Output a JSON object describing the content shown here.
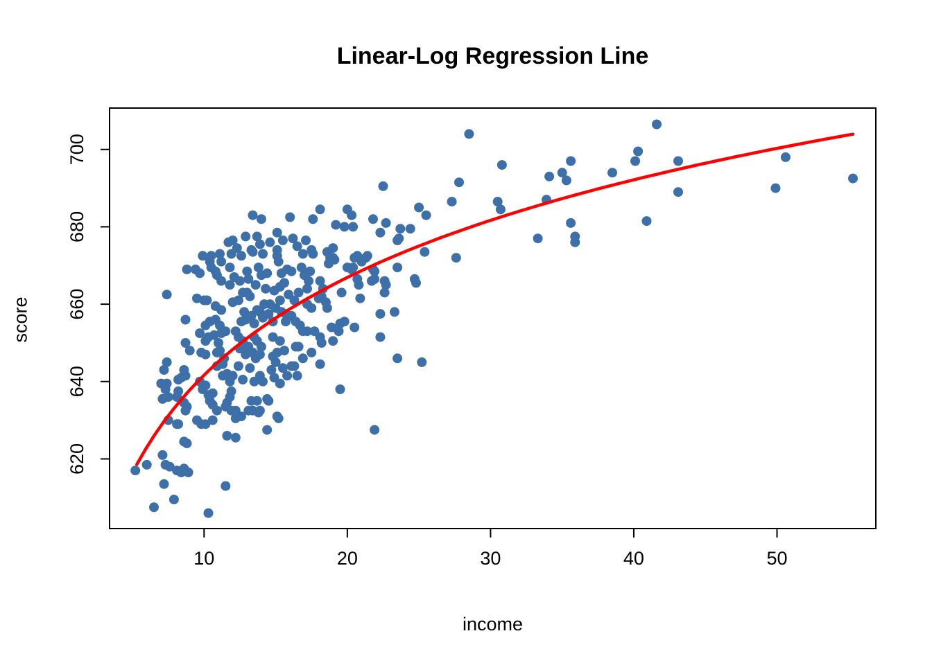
{
  "chart_data": {
    "type": "scatter",
    "title": "Linear-Log Regression Line",
    "xlabel": "income",
    "ylabel": "score",
    "x_ticks": [
      10,
      20,
      30,
      40,
      50
    ],
    "y_ticks": [
      620,
      640,
      660,
      680,
      700
    ],
    "xlim": [
      3.4,
      56.9
    ],
    "ylim": [
      602,
      710.7
    ],
    "grid": false,
    "legend": "none",
    "point_color": "#3D6FA8",
    "line_color": "#FF0000",
    "axis_color": "#000000",
    "regression_line": {
      "model": "score = 557.8 + 36.42 * ln(income)",
      "intercept": 557.8,
      "slope_log": 36.42,
      "x_start": 5.3,
      "x_end": 55.3
    },
    "points": [
      [
        28.5,
        704
      ],
      [
        30.8,
        696
      ],
      [
        30.5,
        686.5
      ],
      [
        30.7,
        684.5
      ],
      [
        33.9,
        687
      ],
      [
        34.1,
        693
      ],
      [
        35.0,
        694
      ],
      [
        35.3,
        692
      ],
      [
        35.6,
        697
      ],
      [
        38.5,
        694
      ],
      [
        40.3,
        699.5
      ],
      [
        40.1,
        697
      ],
      [
        41.6,
        706.5
      ],
      [
        43.1,
        697
      ],
      [
        43.1,
        689
      ],
      [
        35.6,
        681
      ],
      [
        33.3,
        677
      ],
      [
        35.9,
        677.5
      ],
      [
        35.9,
        676
      ],
      [
        40.9,
        681.5
      ],
      [
        50.6,
        698
      ],
      [
        49.9,
        690
      ],
      [
        55.3,
        692.5
      ],
      [
        22.5,
        690.5
      ],
      [
        27.8,
        691.5
      ],
      [
        27.3,
        686.5
      ],
      [
        25.0,
        685
      ],
      [
        25.5,
        683
      ],
      [
        20.0,
        684.5
      ],
      [
        20.3,
        683
      ],
      [
        19.2,
        680.5
      ],
      [
        19.8,
        680
      ],
      [
        20.4,
        680
      ],
      [
        21.8,
        682
      ],
      [
        22.7,
        681
      ],
      [
        22.3,
        678.5
      ],
      [
        23.7,
        679.5
      ],
      [
        23.6,
        677
      ],
      [
        23.5,
        676.5
      ],
      [
        24.4,
        679.5
      ],
      [
        25.4,
        673.5
      ],
      [
        27.6,
        672
      ],
      [
        19.0,
        674.5
      ],
      [
        19.0,
        672
      ],
      [
        19.1,
        671.5
      ],
      [
        20.5,
        672
      ],
      [
        20.7,
        672.5
      ],
      [
        21.3,
        672
      ],
      [
        21.4,
        672.5
      ],
      [
        21.0,
        671
      ],
      [
        20.0,
        669.5
      ],
      [
        20.4,
        669.5
      ],
      [
        20.3,
        669
      ],
      [
        21.8,
        669
      ],
      [
        21.9,
        668.5
      ],
      [
        23.5,
        669.5
      ],
      [
        20.7,
        666.5
      ],
      [
        20.8,
        665
      ],
      [
        21.7,
        666
      ],
      [
        21.9,
        666.5
      ],
      [
        22.6,
        666
      ],
      [
        22.7,
        665
      ],
      [
        24.7,
        666.5
      ],
      [
        24.8,
        665.5
      ],
      [
        19.6,
        663
      ],
      [
        20.9,
        661.5
      ],
      [
        22.6,
        663
      ],
      [
        22.3,
        657.5
      ],
      [
        23.3,
        658
      ],
      [
        19.4,
        653
      ],
      [
        20.5,
        654
      ],
      [
        22.3,
        651.5
      ],
      [
        23.5,
        646
      ],
      [
        25.2,
        645
      ],
      [
        19.5,
        638
      ],
      [
        21.9,
        627.5
      ],
      [
        11.7,
        676
      ],
      [
        9.9,
        672.5
      ],
      [
        10.5,
        672.5
      ],
      [
        11.1,
        673
      ],
      [
        11.2,
        671
      ],
      [
        8.8,
        669
      ],
      [
        9.4,
        669
      ],
      [
        9.7,
        668
      ],
      [
        10.4,
        671
      ],
      [
        10.5,
        669.5
      ],
      [
        10.8,
        668.5
      ],
      [
        10.9,
        667.5
      ],
      [
        11.2,
        666
      ],
      [
        7.4,
        662.5
      ],
      [
        9.5,
        661.5
      ],
      [
        10.0,
        661
      ],
      [
        10.2,
        661
      ],
      [
        10.8,
        659.5
      ],
      [
        11.2,
        658.5
      ],
      [
        8.7,
        656
      ],
      [
        10.1,
        654.5
      ],
      [
        10.4,
        655.5
      ],
      [
        10.8,
        656
      ],
      [
        11.1,
        654.5
      ],
      [
        11.5,
        653
      ],
      [
        11.2,
        652.5
      ],
      [
        9.7,
        652.5
      ],
      [
        10.1,
        650.5
      ],
      [
        10.3,
        651.5
      ],
      [
        8.7,
        650
      ],
      [
        9.0,
        648
      ],
      [
        9.8,
        647.5
      ],
      [
        10.1,
        647
      ],
      [
        10.9,
        647.5
      ],
      [
        11.1,
        648
      ],
      [
        7.4,
        645
      ],
      [
        13.4,
        683
      ],
      [
        14.0,
        682
      ],
      [
        16.0,
        682.5
      ],
      [
        17.6,
        682
      ],
      [
        18.1,
        684.5
      ],
      [
        12.9,
        677.5
      ],
      [
        13.7,
        677.5
      ],
      [
        12.0,
        676.5
      ],
      [
        15.1,
        678.5
      ],
      [
        16.2,
        677
      ],
      [
        12.6,
        672.5
      ],
      [
        13.3,
        674
      ],
      [
        13.4,
        673.5
      ],
      [
        14.1,
        673
      ],
      [
        15.1,
        674
      ],
      [
        15.1,
        672.5
      ],
      [
        15.2,
        671
      ],
      [
        16.9,
        673
      ],
      [
        17.5,
        674
      ],
      [
        17.6,
        673
      ],
      [
        18.6,
        673.5
      ],
      [
        18.8,
        672
      ],
      [
        18.7,
        670.5
      ],
      [
        11.8,
        669.5
      ],
      [
        11.8,
        665
      ],
      [
        14.0,
        667.5
      ],
      [
        15.4,
        668
      ],
      [
        15.6,
        665.5
      ],
      [
        15.3,
        664.5
      ],
      [
        17.0,
        667.5
      ],
      [
        17.3,
        666
      ],
      [
        17.2,
        664
      ],
      [
        18.1,
        666
      ],
      [
        18.3,
        664
      ],
      [
        18.2,
        662
      ],
      [
        18.0,
        661.5
      ],
      [
        12.7,
        663
      ],
      [
        13.0,
        663
      ],
      [
        13.2,
        662
      ],
      [
        14.2,
        660
      ],
      [
        14.6,
        660
      ],
      [
        12.0,
        660.5
      ],
      [
        12.4,
        661
      ],
      [
        13.7,
        658.5
      ],
      [
        13.9,
        658
      ],
      [
        15.3,
        661
      ],
      [
        15.4,
        658
      ],
      [
        15.7,
        657.5
      ],
      [
        17.2,
        660
      ],
      [
        17.5,
        659
      ],
      [
        18.5,
        660.5
      ],
      [
        18.6,
        659
      ],
      [
        12.6,
        655.5
      ],
      [
        12.9,
        656
      ],
      [
        13.5,
        655
      ],
      [
        14.8,
        655.5
      ],
      [
        15.7,
        655.5
      ],
      [
        16.7,
        654.5
      ],
      [
        16.9,
        653
      ],
      [
        19.8,
        655.5
      ],
      [
        12.2,
        653
      ],
      [
        12.4,
        651.5
      ],
      [
        12.7,
        650.5
      ],
      [
        13.5,
        651.5
      ],
      [
        13.7,
        650.5
      ],
      [
        14.0,
        649
      ],
      [
        14.8,
        651.5
      ],
      [
        15.3,
        650.5
      ],
      [
        17.2,
        653
      ],
      [
        17.7,
        653
      ],
      [
        18.1,
        651.5
      ],
      [
        18.9,
        654
      ],
      [
        19.0,
        650.5
      ],
      [
        19.5,
        655
      ],
      [
        13.4,
        647.5
      ],
      [
        13.6,
        646
      ],
      [
        13.9,
        647
      ],
      [
        14.8,
        646.5
      ],
      [
        15.1,
        647.5
      ],
      [
        15.0,
        645
      ],
      [
        16.4,
        649
      ],
      [
        16.6,
        649
      ],
      [
        18.2,
        650
      ],
      [
        16.1,
        644
      ],
      [
        16.3,
        644
      ],
      [
        12.9,
        647
      ],
      [
        18.1,
        644.5
      ],
      [
        7.2,
        643
      ],
      [
        8.4,
        641
      ],
      [
        8.7,
        641.5
      ],
      [
        8.6,
        643
      ],
      [
        7.0,
        639.5
      ],
      [
        7.4,
        639.5
      ],
      [
        7.3,
        638
      ],
      [
        7.1,
        635.5
      ],
      [
        7.5,
        636
      ],
      [
        8.2,
        640.5
      ],
      [
        8.2,
        637.5
      ],
      [
        8.1,
        636
      ],
      [
        9.7,
        640
      ],
      [
        9.9,
        638
      ],
      [
        10.1,
        639
      ],
      [
        10.3,
        636.5
      ],
      [
        10.6,
        637
      ],
      [
        11.3,
        641.5
      ],
      [
        11.6,
        642
      ],
      [
        8.6,
        634.5
      ],
      [
        8.8,
        633.5
      ],
      [
        8.7,
        632.5
      ],
      [
        10.4,
        635
      ],
      [
        10.6,
        634
      ],
      [
        10.9,
        632.5
      ],
      [
        11.5,
        633.5
      ],
      [
        11.6,
        634.5
      ],
      [
        7.5,
        630
      ],
      [
        8.1,
        629
      ],
      [
        8.2,
        629
      ],
      [
        9.5,
        630
      ],
      [
        9.8,
        629
      ],
      [
        10.1,
        629
      ],
      [
        10.6,
        630
      ],
      [
        8.6,
        624.5
      ],
      [
        8.8,
        624
      ],
      [
        7.1,
        621
      ],
      [
        7.3,
        618.5
      ],
      [
        7.6,
        618
      ],
      [
        6.0,
        618.5
      ],
      [
        5.2,
        617
      ],
      [
        7.2,
        613.5
      ],
      [
        7.9,
        609.5
      ],
      [
        6.5,
        607.5
      ],
      [
        11.5,
        613
      ],
      [
        10.3,
        606
      ],
      [
        8.1,
        617
      ],
      [
        8.4,
        616.5
      ],
      [
        8.6,
        617.5
      ],
      [
        8.9,
        616.5
      ],
      [
        11.6,
        626
      ],
      [
        13.9,
        641.5
      ],
      [
        13.5,
        640
      ],
      [
        14.1,
        640
      ],
      [
        15.8,
        641.5
      ],
      [
        11.8,
        640
      ],
      [
        11.9,
        637.5
      ],
      [
        11.8,
        636
      ],
      [
        13.3,
        635
      ],
      [
        13.7,
        635
      ],
      [
        14.4,
        635.5
      ],
      [
        14.5,
        635
      ],
      [
        12.2,
        632.5
      ],
      [
        11.9,
        632.5
      ],
      [
        12.6,
        631
      ],
      [
        12.2,
        630.5
      ],
      [
        13.1,
        632.5
      ],
      [
        13.4,
        632.5
      ],
      [
        13.8,
        632
      ],
      [
        13.9,
        632.5
      ],
      [
        15.1,
        631
      ],
      [
        15.2,
        630.5
      ],
      [
        14.4,
        627.5
      ],
      [
        12.2,
        625.5
      ],
      [
        12.1,
        667
      ],
      [
        12.5,
        666
      ],
      [
        13.1,
        666.5
      ],
      [
        13.6,
        665
      ],
      [
        14.3,
        664
      ],
      [
        14.9,
        663.5
      ],
      [
        15.9,
        662.5
      ],
      [
        16.3,
        661
      ],
      [
        16.6,
        663
      ],
      [
        12.8,
        658
      ],
      [
        13.3,
        657
      ],
      [
        14.1,
        656.5
      ],
      [
        14.5,
        657.5
      ],
      [
        15.0,
        659
      ],
      [
        16.1,
        657
      ],
      [
        16.4,
        655.5
      ],
      [
        12.5,
        648.5
      ],
      [
        13.1,
        649
      ],
      [
        15.6,
        648
      ],
      [
        16.9,
        646
      ],
      [
        17.5,
        647.5
      ],
      [
        12.4,
        644
      ],
      [
        13.2,
        643.5
      ],
      [
        14.7,
        643
      ],
      [
        15.5,
        643.5
      ],
      [
        10.7,
        652
      ],
      [
        11.0,
        650
      ],
      [
        11.4,
        646
      ],
      [
        10.9,
        644
      ],
      [
        11.3,
        644.5
      ],
      [
        12.0,
        641.5
      ],
      [
        12.7,
        640.5
      ],
      [
        14.9,
        641
      ],
      [
        15.3,
        639.5
      ],
      [
        16.5,
        641.5
      ],
      [
        13.0,
        668.5
      ],
      [
        13.8,
        669.5
      ],
      [
        14.4,
        668
      ],
      [
        15.8,
        669
      ],
      [
        16.1,
        668.5
      ],
      [
        16.8,
        669.5
      ],
      [
        17.4,
        668.5
      ],
      [
        11.9,
        673
      ],
      [
        12.3,
        674.5
      ],
      [
        13.9,
        675.5
      ],
      [
        14.6,
        676
      ],
      [
        15.5,
        676.5
      ],
      [
        16.5,
        675
      ],
      [
        17.1,
        676.5
      ]
    ]
  }
}
